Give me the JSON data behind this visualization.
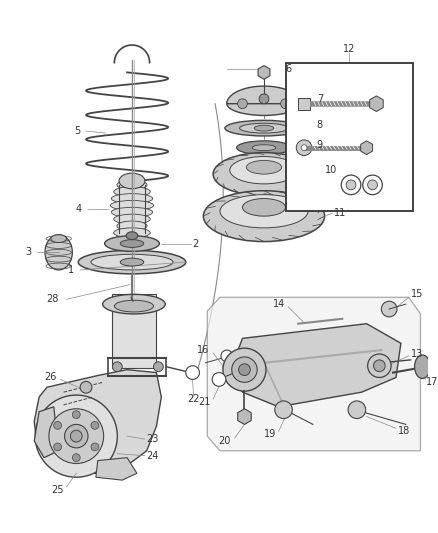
{
  "bg_color": "#ffffff",
  "line_color": "#444444",
  "label_color": "#333333",
  "figsize": [
    4.38,
    5.33
  ],
  "dpi": 100,
  "label_fs": 7.0,
  "leader_color": "#888888"
}
